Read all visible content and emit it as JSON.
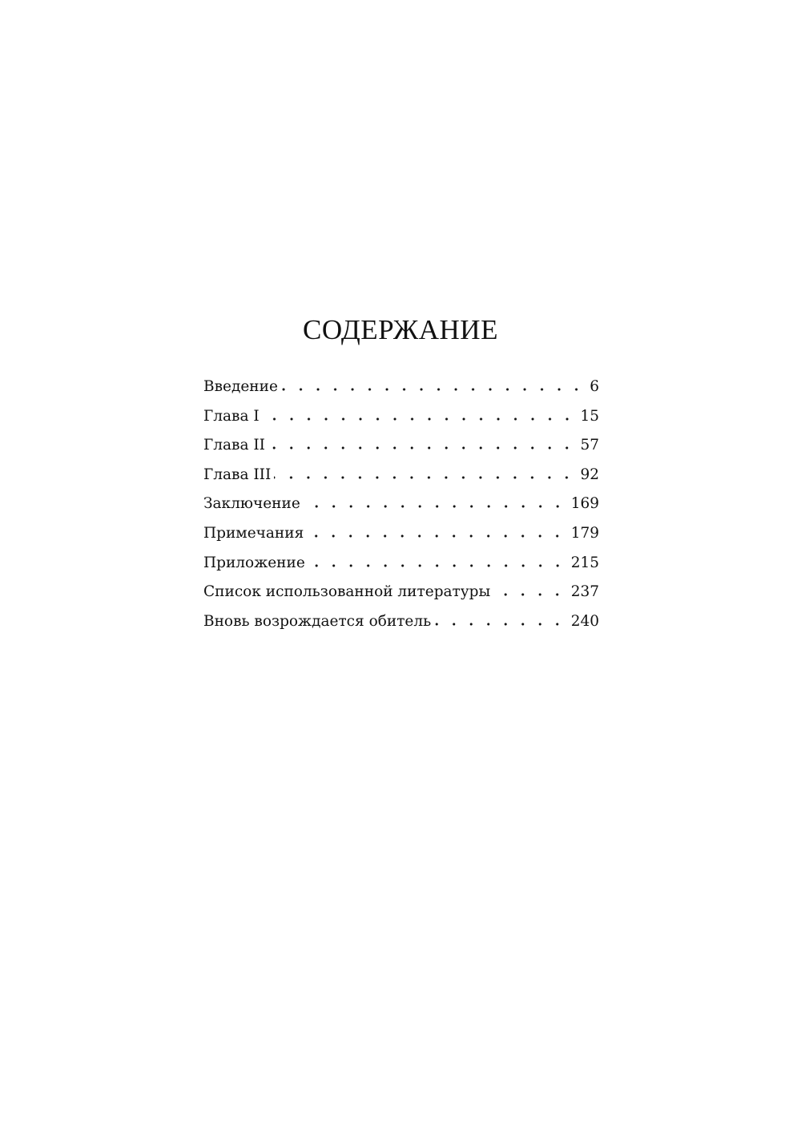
{
  "title": "СОДЕРЖАНИЕ",
  "toc": [
    {
      "label": "Введение",
      "page": "6"
    },
    {
      "label": "Глава I",
      "page": "15"
    },
    {
      "label": "Глава II",
      "page": "57"
    },
    {
      "label": "Глава III",
      "page": "92"
    },
    {
      "label": "Заключение",
      "page": "169"
    },
    {
      "label": "Примечания",
      "page": "179"
    },
    {
      "label": "Приложение",
      "page": "215"
    },
    {
      "label": "Список использованной литературы",
      "page": "237"
    },
    {
      "label": "Вновь возрождается обитель",
      "page": "240"
    }
  ]
}
